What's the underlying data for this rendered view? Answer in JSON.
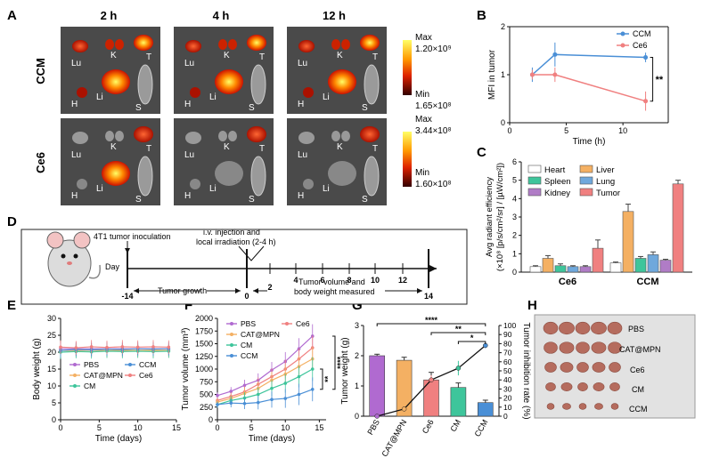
{
  "panel_letters": [
    "A",
    "B",
    "C",
    "D",
    "E",
    "F",
    "G",
    "H"
  ],
  "panelA": {
    "time_labels": [
      "2 h",
      "4 h",
      "12 h"
    ],
    "row_labels": [
      "CCM",
      "Ce6"
    ],
    "organ_labels": {
      "T": "T",
      "Lu": "Lu",
      "K": "K",
      "H": "H",
      "Li": "Li",
      "S": "S"
    },
    "scale_ccm": {
      "max_label": "Max",
      "max_value": "1.20×10⁹",
      "min_label": "Min",
      "min_value": "1.65×10⁸"
    },
    "scale_ce6": {
      "max_label": "Max",
      "max_value": "3.44×10⁸",
      "min_label": "Min",
      "min_value": "1.60×10⁸"
    }
  },
  "panelD": {
    "inoculation": "4T1 tumor inoculation",
    "injection_line1": "i.v. injection and",
    "injection_line2": "local irradiation (2-4 h)",
    "day_label": "Day",
    "growth": "Tumor growth",
    "measured_line1": "Tumor volume and",
    "measured_line2": "body weight measured",
    "days": [
      "-14",
      "0",
      "2",
      "4",
      "6",
      "8",
      "10",
      "12",
      "14"
    ]
  },
  "panelH": {
    "labels": [
      "PBS",
      "CAT@MPN",
      "Ce6",
      "CM",
      "CCM"
    ]
  },
  "colors": {
    "CCM": "#4a8fd6",
    "Ce6": "#f08080",
    "PBS": "#b06ad0",
    "CAT@MPN": "#f4b063",
    "CM": "#3ec59b",
    "heart": "#ffffff",
    "liver": "#f4b063",
    "spleen": "#3ec59b",
    "lung": "#6fa8dc",
    "kidney": "#b07cc6",
    "tumor": "#f08080"
  },
  "chart_data": [
    {
      "id": "B",
      "type": "line",
      "title": "",
      "xlabel": "Time (h)",
      "ylabel": "MFI in tumor",
      "xlim": [
        0,
        14
      ],
      "ylim": [
        0,
        2
      ],
      "xticks": [
        0,
        5,
        10
      ],
      "yticks": [
        0,
        1,
        2
      ],
      "series": [
        {
          "name": "CCM",
          "x": [
            2,
            4,
            12
          ],
          "y": [
            1.0,
            1.42,
            1.36
          ],
          "err": [
            0.15,
            0.25,
            0.1
          ]
        },
        {
          "name": "Ce6",
          "x": [
            2,
            4,
            12
          ],
          "y": [
            1.0,
            1.0,
            0.45
          ],
          "err": [
            0.1,
            0.15,
            0.2
          ]
        }
      ],
      "annotation": "**",
      "legend": "top-right"
    },
    {
      "id": "C",
      "type": "bar",
      "ylabel_line1": "Avg radiant efficiency",
      "ylabel_line2": "(×10⁸ [p/s/cm²/sr] / [µW/cm²])",
      "ylim": [
        0,
        6
      ],
      "yticks": [
        0,
        1,
        2,
        3,
        4,
        5,
        6
      ],
      "categories": [
        "Ce6",
        "CCM"
      ],
      "series": [
        {
          "name": "Heart",
          "values": [
            0.3,
            0.5
          ],
          "err": [
            0.05,
            0.05
          ]
        },
        {
          "name": "Liver",
          "values": [
            0.75,
            3.3
          ],
          "err": [
            0.15,
            0.4
          ]
        },
        {
          "name": "Spleen",
          "values": [
            0.35,
            0.75
          ],
          "err": [
            0.1,
            0.1
          ]
        },
        {
          "name": "Lung",
          "values": [
            0.3,
            0.95
          ],
          "err": [
            0.05,
            0.15
          ]
        },
        {
          "name": "Kidney",
          "values": [
            0.3,
            0.65
          ],
          "err": [
            0.05,
            0.05
          ]
        },
        {
          "name": "Tumor",
          "values": [
            1.3,
            4.8
          ],
          "err": [
            0.45,
            0.2
          ]
        }
      ],
      "legend": "top-left"
    },
    {
      "id": "E",
      "type": "line",
      "xlabel": "Time (days)",
      "ylabel": "Body weight (g)",
      "xlim": [
        0,
        15
      ],
      "ylim": [
        0,
        30
      ],
      "xticks": [
        0,
        5,
        10,
        15
      ],
      "yticks": [
        0,
        5,
        10,
        15,
        20,
        25,
        30
      ],
      "x": [
        0,
        2,
        4,
        6,
        8,
        10,
        12,
        14
      ],
      "series": [
        {
          "name": "PBS",
          "values": [
            21,
            21,
            21,
            21,
            21,
            21,
            21,
            21
          ]
        },
        {
          "name": "CAT@MPN",
          "values": [
            20.5,
            20.5,
            20.6,
            20.5,
            20.6,
            20.5,
            20.6,
            20.5
          ]
        },
        {
          "name": "CM",
          "values": [
            20,
            20.2,
            20.1,
            20.3,
            20.2,
            20.3,
            20.2,
            20.3
          ]
        },
        {
          "name": "CCM",
          "values": [
            20.5,
            20.8,
            20.7,
            20.9,
            20.8,
            21,
            20.9,
            21
          ]
        },
        {
          "name": "Ce6",
          "values": [
            21.5,
            21.3,
            21.6,
            21.4,
            21.6,
            21.5,
            21.6,
            21.5
          ]
        }
      ],
      "legend": "bottom-left"
    },
    {
      "id": "F",
      "type": "line",
      "xlabel": "Time (days)",
      "ylabel": "Tumor volume (mm³)",
      "xlim": [
        0,
        16
      ],
      "ylim": [
        0,
        2000
      ],
      "xticks": [
        0,
        5,
        10,
        15
      ],
      "yticks": [
        0,
        250,
        500,
        750,
        1000,
        1250,
        1500,
        1750,
        2000
      ],
      "x": [
        0,
        2,
        4,
        6,
        8,
        10,
        12,
        14
      ],
      "series": [
        {
          "name": "PBS",
          "values": [
            480,
            560,
            680,
            780,
            980,
            1150,
            1400,
            1650
          ]
        },
        {
          "name": "Ce6",
          "values": [
            380,
            460,
            550,
            700,
            850,
            1000,
            1200,
            1420
          ]
        },
        {
          "name": "CAT@MPN",
          "values": [
            350,
            420,
            520,
            620,
            780,
            900,
            1050,
            1200
          ]
        },
        {
          "name": "CM",
          "values": [
            300,
            380,
            430,
            500,
            620,
            720,
            850,
            1000
          ]
        },
        {
          "name": "CCM",
          "values": [
            300,
            330,
            320,
            340,
            400,
            420,
            500,
            600
          ]
        }
      ],
      "annotations": [
        "**",
        "****"
      ]
    },
    {
      "id": "G",
      "type": "bar",
      "ylabel": "Tumor weight (g)",
      "y2label": "Tumor inhibition rate (%)",
      "ylim": [
        0,
        3
      ],
      "yticks": [
        0,
        1,
        2,
        3
      ],
      "y2lim": [
        0,
        100
      ],
      "y2ticks": [
        0,
        10,
        20,
        30,
        40,
        50,
        60,
        70,
        80,
        90,
        100
      ],
      "categories": [
        "PBS",
        "CAT@MPN",
        "Ce6",
        "CM",
        "CCM"
      ],
      "values": [
        2.0,
        1.85,
        1.2,
        0.95,
        0.45
      ],
      "err": [
        0.05,
        0.1,
        0.25,
        0.15,
        0.08
      ],
      "inhibition_rate": [
        0,
        8,
        40,
        53,
        78
      ],
      "inhibition_err": [
        0,
        0,
        5,
        8,
        3
      ],
      "annotations": [
        "****",
        "**",
        "*"
      ]
    }
  ]
}
